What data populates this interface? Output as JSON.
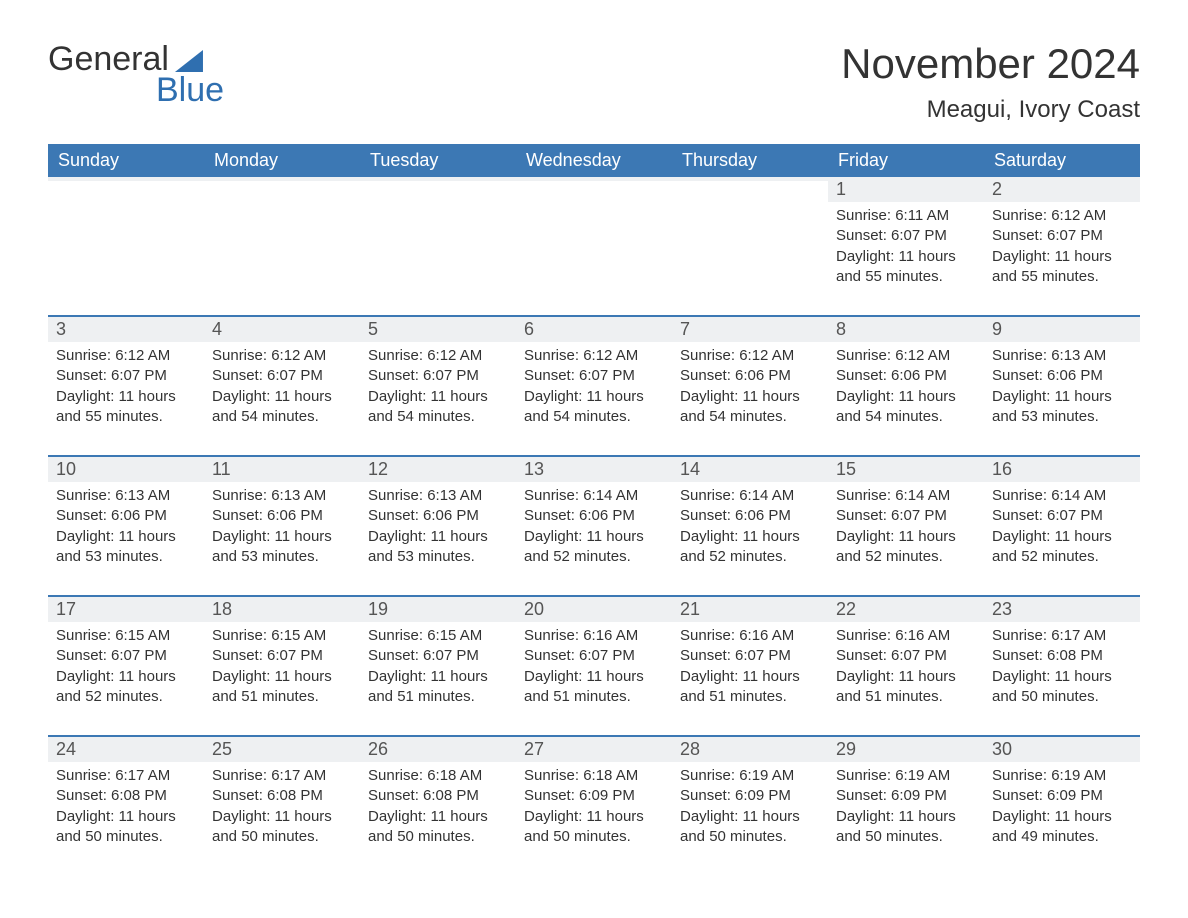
{
  "brand": {
    "word1": "General",
    "word2": "Blue",
    "accent_color": "#2f6fb0"
  },
  "title": "November 2024",
  "location": "Meagui, Ivory Coast",
  "colors": {
    "header_bg": "#3c78b4",
    "header_text": "#ffffff",
    "daynum_bg": "#eef0f2",
    "dayborder": "#3c78b4",
    "body_text": "#333333",
    "page_bg": "#ffffff"
  },
  "weekdays": [
    "Sunday",
    "Monday",
    "Tuesday",
    "Wednesday",
    "Thursday",
    "Friday",
    "Saturday"
  ],
  "weeks": [
    [
      {
        "n": "",
        "sr": "",
        "ss": "",
        "dl": ""
      },
      {
        "n": "",
        "sr": "",
        "ss": "",
        "dl": ""
      },
      {
        "n": "",
        "sr": "",
        "ss": "",
        "dl": ""
      },
      {
        "n": "",
        "sr": "",
        "ss": "",
        "dl": ""
      },
      {
        "n": "",
        "sr": "",
        "ss": "",
        "dl": ""
      },
      {
        "n": "1",
        "sr": "Sunrise: 6:11 AM",
        "ss": "Sunset: 6:07 PM",
        "dl": "Daylight: 11 hours and 55 minutes."
      },
      {
        "n": "2",
        "sr": "Sunrise: 6:12 AM",
        "ss": "Sunset: 6:07 PM",
        "dl": "Daylight: 11 hours and 55 minutes."
      }
    ],
    [
      {
        "n": "3",
        "sr": "Sunrise: 6:12 AM",
        "ss": "Sunset: 6:07 PM",
        "dl": "Daylight: 11 hours and 55 minutes."
      },
      {
        "n": "4",
        "sr": "Sunrise: 6:12 AM",
        "ss": "Sunset: 6:07 PM",
        "dl": "Daylight: 11 hours and 54 minutes."
      },
      {
        "n": "5",
        "sr": "Sunrise: 6:12 AM",
        "ss": "Sunset: 6:07 PM",
        "dl": "Daylight: 11 hours and 54 minutes."
      },
      {
        "n": "6",
        "sr": "Sunrise: 6:12 AM",
        "ss": "Sunset: 6:07 PM",
        "dl": "Daylight: 11 hours and 54 minutes."
      },
      {
        "n": "7",
        "sr": "Sunrise: 6:12 AM",
        "ss": "Sunset: 6:06 PM",
        "dl": "Daylight: 11 hours and 54 minutes."
      },
      {
        "n": "8",
        "sr": "Sunrise: 6:12 AM",
        "ss": "Sunset: 6:06 PM",
        "dl": "Daylight: 11 hours and 54 minutes."
      },
      {
        "n": "9",
        "sr": "Sunrise: 6:13 AM",
        "ss": "Sunset: 6:06 PM",
        "dl": "Daylight: 11 hours and 53 minutes."
      }
    ],
    [
      {
        "n": "10",
        "sr": "Sunrise: 6:13 AM",
        "ss": "Sunset: 6:06 PM",
        "dl": "Daylight: 11 hours and 53 minutes."
      },
      {
        "n": "11",
        "sr": "Sunrise: 6:13 AM",
        "ss": "Sunset: 6:06 PM",
        "dl": "Daylight: 11 hours and 53 minutes."
      },
      {
        "n": "12",
        "sr": "Sunrise: 6:13 AM",
        "ss": "Sunset: 6:06 PM",
        "dl": "Daylight: 11 hours and 53 minutes."
      },
      {
        "n": "13",
        "sr": "Sunrise: 6:14 AM",
        "ss": "Sunset: 6:06 PM",
        "dl": "Daylight: 11 hours and 52 minutes."
      },
      {
        "n": "14",
        "sr": "Sunrise: 6:14 AM",
        "ss": "Sunset: 6:06 PM",
        "dl": "Daylight: 11 hours and 52 minutes."
      },
      {
        "n": "15",
        "sr": "Sunrise: 6:14 AM",
        "ss": "Sunset: 6:07 PM",
        "dl": "Daylight: 11 hours and 52 minutes."
      },
      {
        "n": "16",
        "sr": "Sunrise: 6:14 AM",
        "ss": "Sunset: 6:07 PM",
        "dl": "Daylight: 11 hours and 52 minutes."
      }
    ],
    [
      {
        "n": "17",
        "sr": "Sunrise: 6:15 AM",
        "ss": "Sunset: 6:07 PM",
        "dl": "Daylight: 11 hours and 52 minutes."
      },
      {
        "n": "18",
        "sr": "Sunrise: 6:15 AM",
        "ss": "Sunset: 6:07 PM",
        "dl": "Daylight: 11 hours and 51 minutes."
      },
      {
        "n": "19",
        "sr": "Sunrise: 6:15 AM",
        "ss": "Sunset: 6:07 PM",
        "dl": "Daylight: 11 hours and 51 minutes."
      },
      {
        "n": "20",
        "sr": "Sunrise: 6:16 AM",
        "ss": "Sunset: 6:07 PM",
        "dl": "Daylight: 11 hours and 51 minutes."
      },
      {
        "n": "21",
        "sr": "Sunrise: 6:16 AM",
        "ss": "Sunset: 6:07 PM",
        "dl": "Daylight: 11 hours and 51 minutes."
      },
      {
        "n": "22",
        "sr": "Sunrise: 6:16 AM",
        "ss": "Sunset: 6:07 PM",
        "dl": "Daylight: 11 hours and 51 minutes."
      },
      {
        "n": "23",
        "sr": "Sunrise: 6:17 AM",
        "ss": "Sunset: 6:08 PM",
        "dl": "Daylight: 11 hours and 50 minutes."
      }
    ],
    [
      {
        "n": "24",
        "sr": "Sunrise: 6:17 AM",
        "ss": "Sunset: 6:08 PM",
        "dl": "Daylight: 11 hours and 50 minutes."
      },
      {
        "n": "25",
        "sr": "Sunrise: 6:17 AM",
        "ss": "Sunset: 6:08 PM",
        "dl": "Daylight: 11 hours and 50 minutes."
      },
      {
        "n": "26",
        "sr": "Sunrise: 6:18 AM",
        "ss": "Sunset: 6:08 PM",
        "dl": "Daylight: 11 hours and 50 minutes."
      },
      {
        "n": "27",
        "sr": "Sunrise: 6:18 AM",
        "ss": "Sunset: 6:09 PM",
        "dl": "Daylight: 11 hours and 50 minutes."
      },
      {
        "n": "28",
        "sr": "Sunrise: 6:19 AM",
        "ss": "Sunset: 6:09 PM",
        "dl": "Daylight: 11 hours and 50 minutes."
      },
      {
        "n": "29",
        "sr": "Sunrise: 6:19 AM",
        "ss": "Sunset: 6:09 PM",
        "dl": "Daylight: 11 hours and 50 minutes."
      },
      {
        "n": "30",
        "sr": "Sunrise: 6:19 AM",
        "ss": "Sunset: 6:09 PM",
        "dl": "Daylight: 11 hours and 49 minutes."
      }
    ]
  ]
}
